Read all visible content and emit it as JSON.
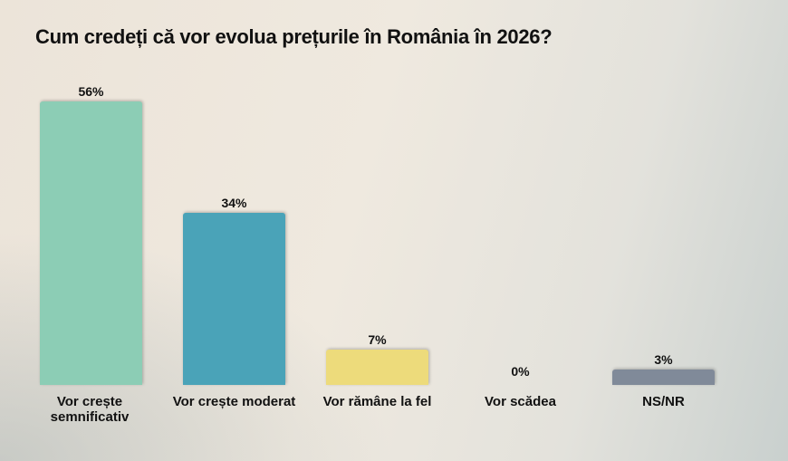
{
  "chart_data": {
    "type": "bar",
    "title": "Cum credeți că vor evolua prețurile în România în 2026?",
    "categories": [
      "Vor crește semnificativ",
      "Vor crește moderat",
      "Vor rămâne la fel",
      "Vor scădea",
      "NS/NR"
    ],
    "values": [
      56,
      34,
      7,
      0,
      3
    ],
    "value_labels": [
      "56%",
      "34%",
      "7%",
      "0%",
      "3%"
    ],
    "colors": [
      "#8ccdb5",
      "#4aa3b8",
      "#eddb7b",
      "#cccccc",
      "#808a99"
    ],
    "ylim": [
      0,
      56
    ],
    "grid": false,
    "legend": "none"
  }
}
